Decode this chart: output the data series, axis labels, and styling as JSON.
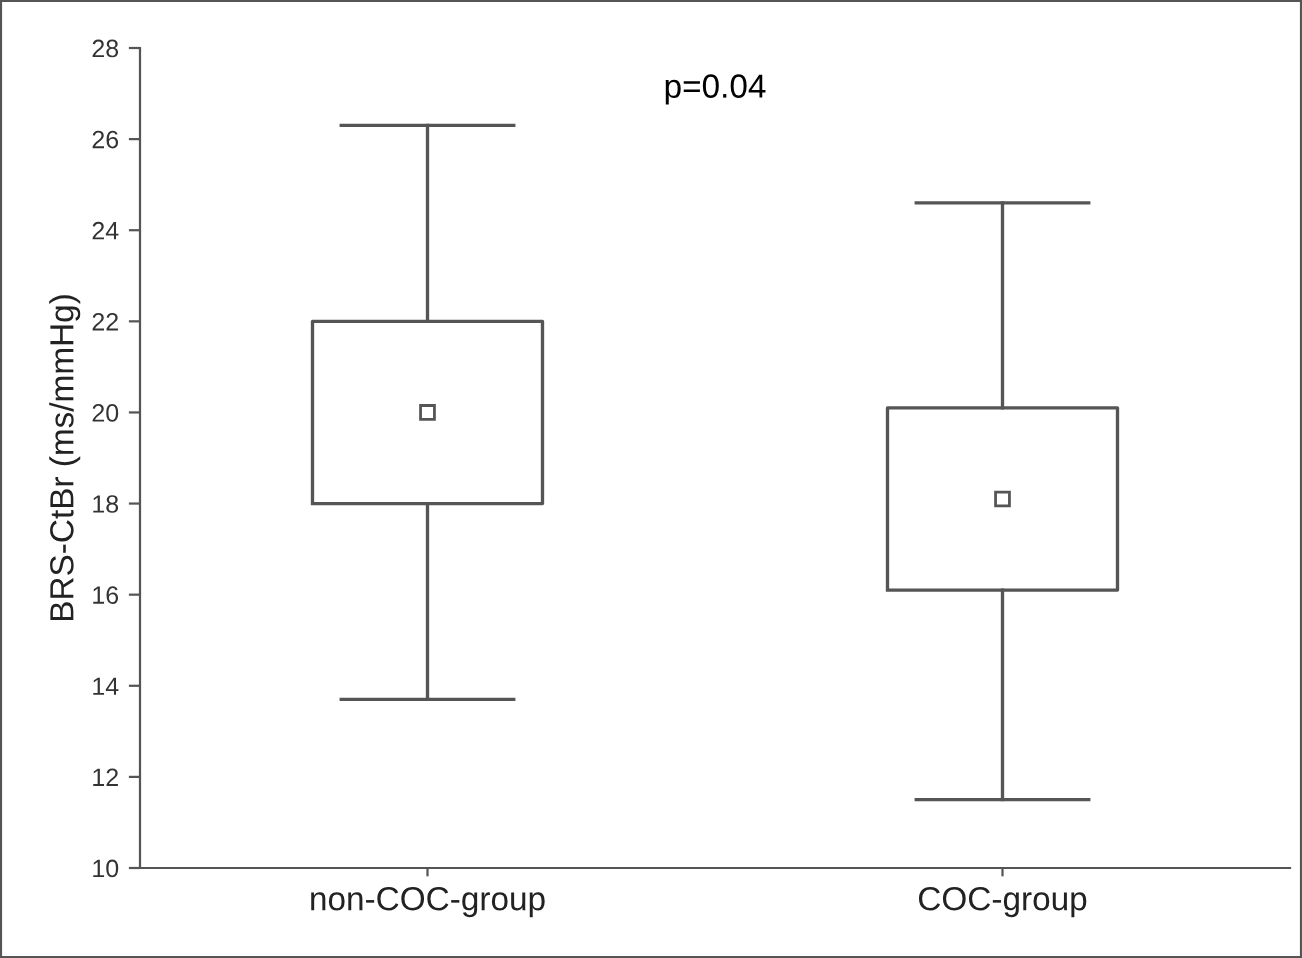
{
  "chart_data": {
    "type": "box",
    "ylabel": "BRS-CtBr (ms/mmHg)",
    "categories": [
      "non-COC-group",
      "COC-group"
    ],
    "boxes": [
      {
        "low": 13.7,
        "q1": 18.0,
        "median": 20.0,
        "q3": 22.0,
        "high": 26.3
      },
      {
        "low": 11.5,
        "q1": 16.1,
        "median": 18.1,
        "q3": 20.1,
        "high": 24.6
      }
    ],
    "color": "#555555",
    "ylim": [
      10,
      28
    ],
    "yticks": [
      10,
      12,
      14,
      16,
      18,
      20,
      22,
      24,
      26,
      28
    ],
    "grid": false,
    "annotations": [
      "p=0.04"
    ]
  }
}
